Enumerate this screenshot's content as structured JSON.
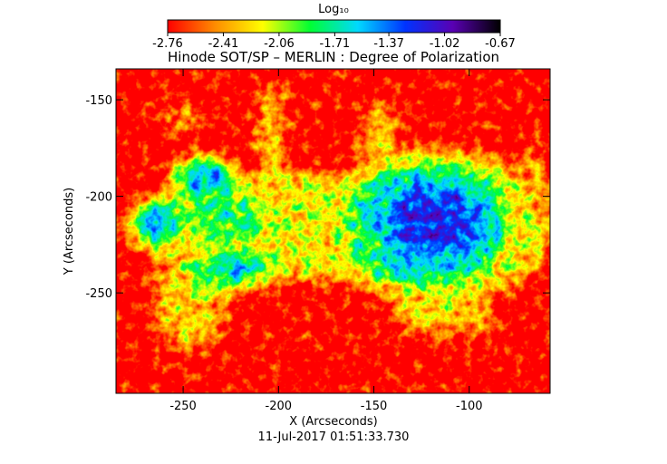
{
  "chart_data": {
    "type": "image",
    "title": "Hinode SOT/SP – MERLIN : Degree of Polarization",
    "xlabel": "X (Arcseconds)",
    "ylabel": "Y (Arcseconds)",
    "date": "11-Jul-2017 01:51:33.730",
    "xlim": [
      -285.2,
      -57.6
    ],
    "xticks": [
      -250,
      -200,
      -150,
      -100
    ],
    "ylim": [
      -302,
      -134
    ],
    "yticks": [
      -150,
      -200,
      -250
    ],
    "colorbar": {
      "label": "Log₁₀",
      "lim": [
        -2.76,
        -0.67
      ],
      "ticks": [
        -2.76,
        -2.41,
        -2.06,
        -1.71,
        -1.37,
        -1.02,
        -0.67
      ]
    },
    "colormap": [
      "#ff0000",
      "#ff8c00",
      "#ffff00",
      "#00ff33",
      "#00d9ff",
      "#0033ff",
      "#5900b3",
      "#000000"
    ]
  }
}
